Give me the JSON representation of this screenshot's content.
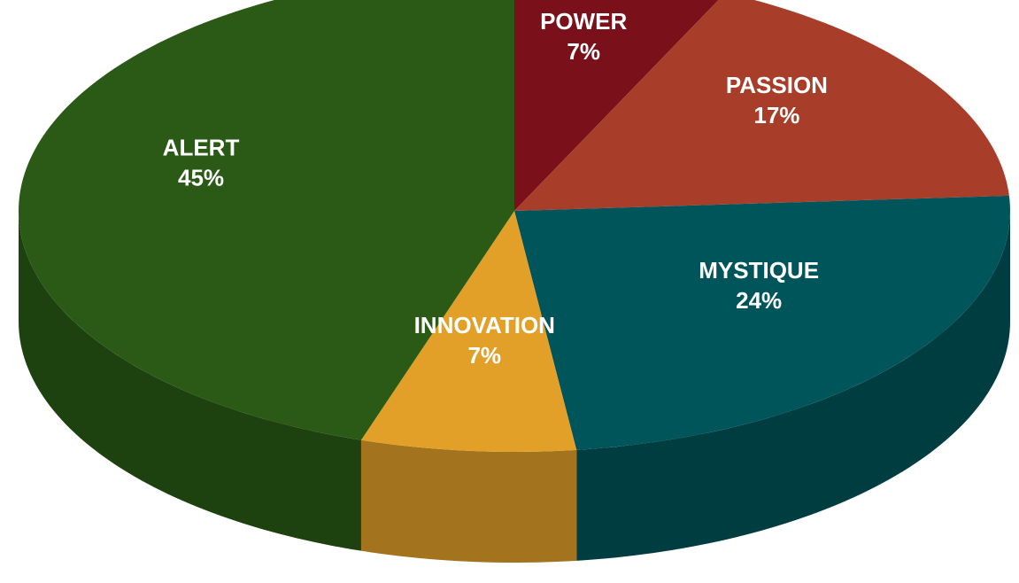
{
  "chart_data": {
    "type": "pie",
    "categories": [
      "POWER",
      "PASSION",
      "MYSTIQUE",
      "INNOVATION",
      "ALERT"
    ],
    "values": [
      7,
      17,
      24,
      7,
      45
    ],
    "value_labels": [
      "7%",
      "17%",
      "24%",
      "7%",
      "45%"
    ],
    "colors": [
      "#7a1019",
      "#a83e2a",
      "#00555a",
      "#e3a029",
      "#2a5a16"
    ]
  }
}
